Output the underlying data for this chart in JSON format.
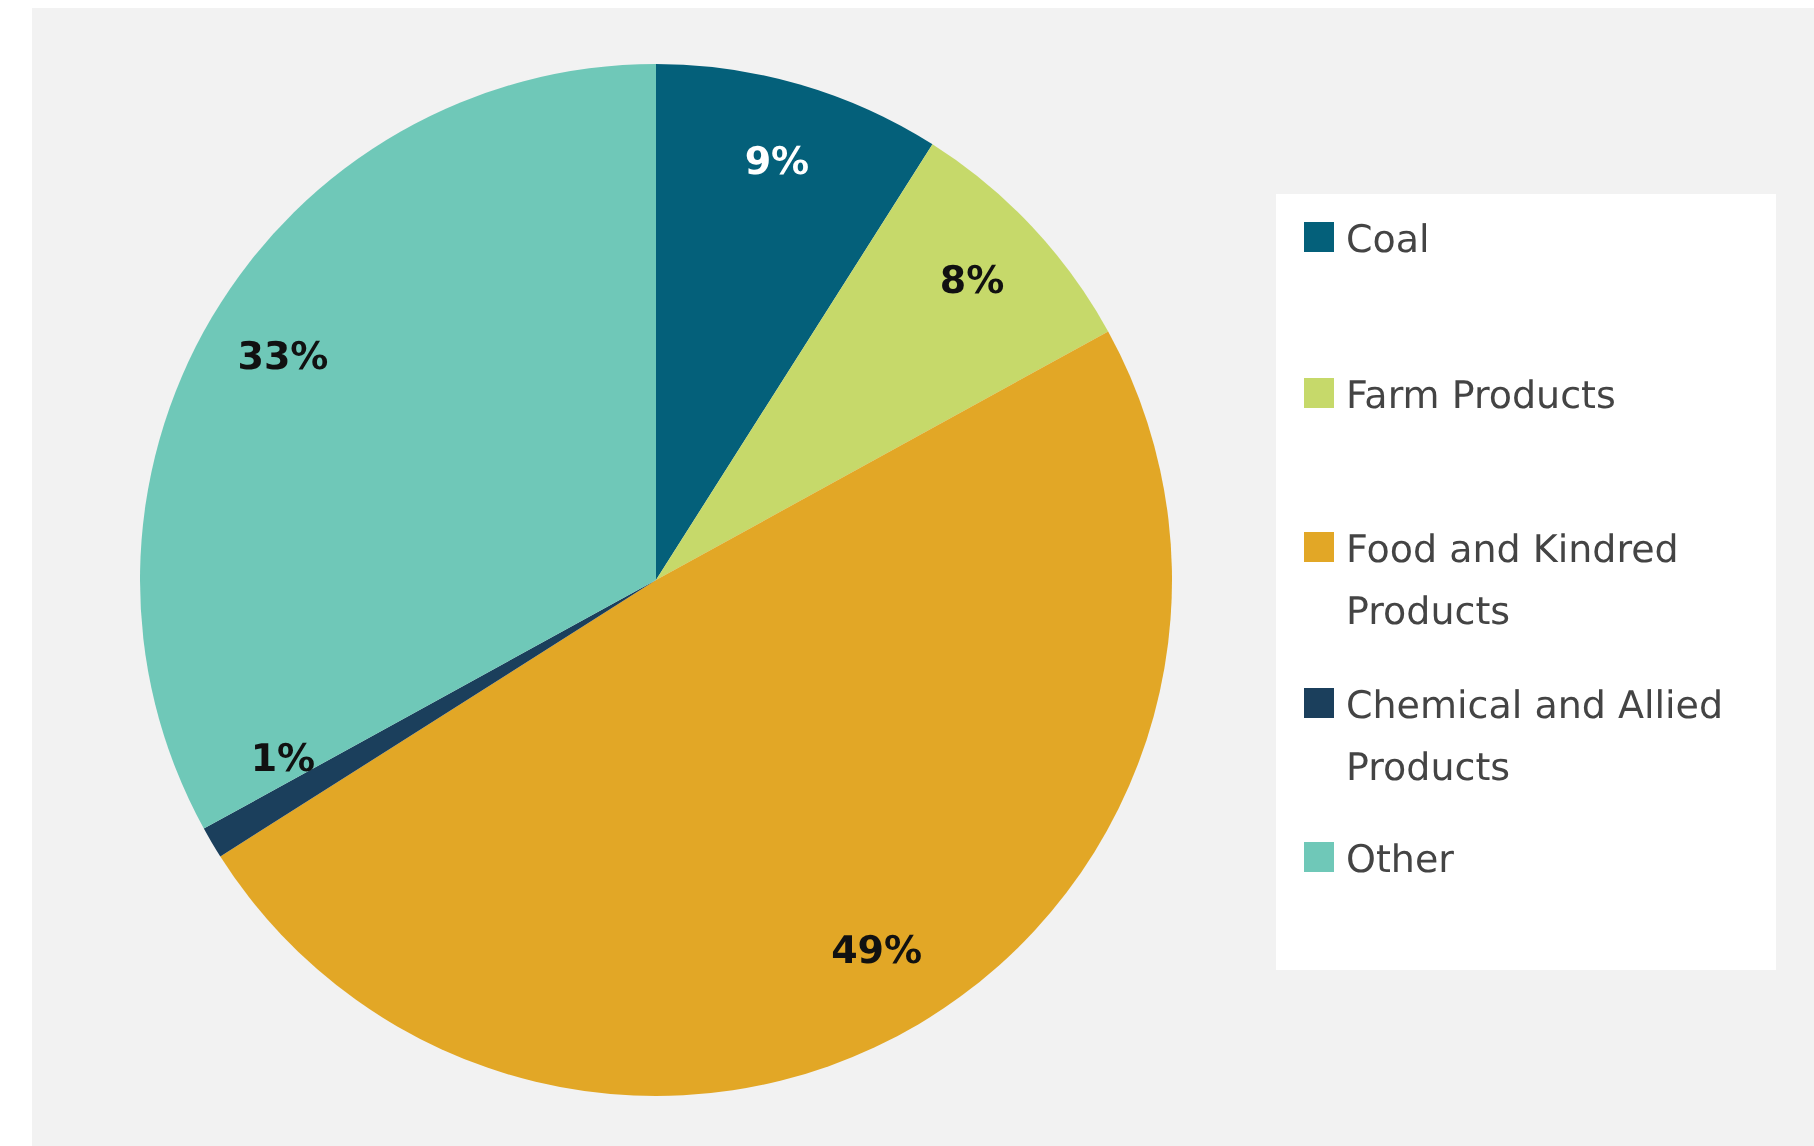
{
  "chart_data": {
    "type": "pie",
    "categories": [
      "Coal",
      "Farm Products",
      "Food and Kindred Products",
      "Chemical and Allied Products",
      "Other"
    ],
    "values": [
      9,
      8,
      49,
      1,
      33
    ],
    "colors": [
      "#04607a",
      "#c6d96a",
      "#e2a726",
      "#1b3f5c",
      "#6fc8b8"
    ],
    "value_labels": [
      "9%",
      "8%",
      "49%",
      "1%",
      "33%"
    ],
    "legend": "right"
  }
}
